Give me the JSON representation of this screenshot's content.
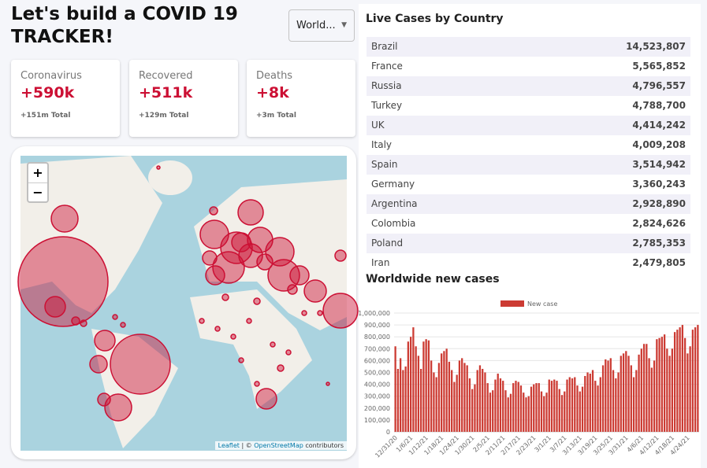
{
  "header": {
    "title": "Let's build a COVID 19 TRACKER!",
    "select": "World..."
  },
  "stats": [
    {
      "title": "Coronavirus",
      "value": "+590k",
      "total": "+151m Total"
    },
    {
      "title": "Recovered",
      "value": "+511k",
      "total": "+129m Total"
    },
    {
      "title": "Deaths",
      "value": "+8k",
      "total": "+3m Total"
    }
  ],
  "map": {
    "zoom_in": "+",
    "zoom_out": "−",
    "attribution": [
      "Leaflet",
      "| ©",
      "OpenStreetMap",
      "contributors"
    ]
  },
  "table": {
    "title": "Live Cases by Country",
    "rows": [
      [
        "Brazil",
        "14,523,807"
      ],
      [
        "France",
        "5,565,852"
      ],
      [
        "Russia",
        "4,796,557"
      ],
      [
        "Turkey",
        "4,788,700"
      ],
      [
        "UK",
        "4,414,242"
      ],
      [
        "Italy",
        "4,009,208"
      ],
      [
        "Spain",
        "3,514,942"
      ],
      [
        "Germany",
        "3,360,243"
      ],
      [
        "Argentina",
        "2,928,890"
      ],
      [
        "Colombia",
        "2,824,626"
      ],
      [
        "Poland",
        "2,785,353"
      ],
      [
        "Iran",
        "2,479,805"
      ]
    ]
  },
  "chart_data": {
    "type": "bar",
    "title": "Worldwide new cases",
    "series": [
      {
        "name": "New case",
        "color": "#cc3b33",
        "values": [
          720000,
          530000,
          620000,
          520000,
          550000,
          760000,
          800000,
          880000,
          720000,
          640000,
          530000,
          760000,
          780000,
          770000,
          600000,
          500000,
          460000,
          580000,
          660000,
          680000,
          700000,
          590000,
          520000,
          420000,
          480000,
          600000,
          620000,
          580000,
          560000,
          450000,
          360000,
          400000,
          520000,
          560000,
          530000,
          500000,
          410000,
          330000,
          350000,
          440000,
          490000,
          450000,
          430000,
          350000,
          290000,
          320000,
          410000,
          430000,
          420000,
          390000,
          330000,
          290000,
          300000,
          380000,
          400000,
          410000,
          410000,
          340000,
          300000,
          330000,
          440000,
          430000,
          440000,
          430000,
          360000,
          310000,
          340000,
          440000,
          460000,
          450000,
          460000,
          390000,
          340000,
          380000,
          470000,
          500000,
          490000,
          520000,
          430000,
          390000,
          460000,
          560000,
          610000,
          600000,
          620000,
          520000,
          450000,
          500000,
          640000,
          660000,
          680000,
          640000,
          560000,
          460000,
          520000,
          650000,
          700000,
          740000,
          740000,
          620000,
          540000,
          600000,
          780000,
          790000,
          800000,
          820000,
          700000,
          640000,
          700000,
          840000,
          860000,
          880000,
          900000,
          790000,
          660000,
          720000,
          860000,
          880000,
          900000
        ]
      }
    ],
    "categories": [
      "12/31/20",
      null,
      null,
      null,
      null,
      null,
      "1/6/21",
      null,
      null,
      null,
      null,
      null,
      "1/12/21",
      null,
      null,
      null,
      null,
      null,
      "1/18/21",
      null,
      null,
      null,
      null,
      null,
      "1/24/21",
      null,
      null,
      null,
      null,
      null,
      "1/30/21",
      null,
      null,
      null,
      null,
      null,
      "2/5/21",
      null,
      null,
      null,
      null,
      null,
      "2/11/21",
      null,
      null,
      null,
      null,
      null,
      "2/17/21",
      null,
      null,
      null,
      null,
      null,
      "2/23/21",
      null,
      null,
      null,
      null,
      null,
      "3/1/21",
      null,
      null,
      null,
      null,
      null,
      "3/7/21",
      null,
      null,
      null,
      null,
      null,
      "3/13/21",
      null,
      null,
      null,
      null,
      null,
      "3/19/21",
      null,
      null,
      null,
      null,
      null,
      "3/25/21",
      null,
      null,
      null,
      null,
      null,
      "3/31/21",
      null,
      null,
      null,
      null,
      null,
      "4/6/21",
      null,
      null,
      null,
      null,
      null,
      "4/12/21",
      null,
      null,
      null,
      null,
      null,
      "4/18/21",
      null,
      null,
      null,
      null,
      null,
      "4/24/21",
      null,
      null,
      null,
      null
    ],
    "ylim": [
      0,
      1000000
    ],
    "yticks": [
      0,
      {
        "value": 100000,
        "label": "100,000"
      },
      {
        "value": 200000,
        "label": "200,000"
      },
      {
        "value": 300000,
        "label": "300,000"
      },
      {
        "value": 400000,
        "label": "400,000"
      },
      {
        "value": 500000,
        "label": "500,000"
      },
      {
        "value": 600000,
        "label": "600,000"
      },
      {
        "value": 700000,
        "label": "700,000"
      },
      {
        "value": 800000,
        "label": "800,000"
      },
      {
        "value": 900000,
        "label": "900,000"
      },
      {
        "value": 1000000,
        "label": "1,000,000"
      }
    ],
    "grid": true,
    "legend": "top"
  }
}
